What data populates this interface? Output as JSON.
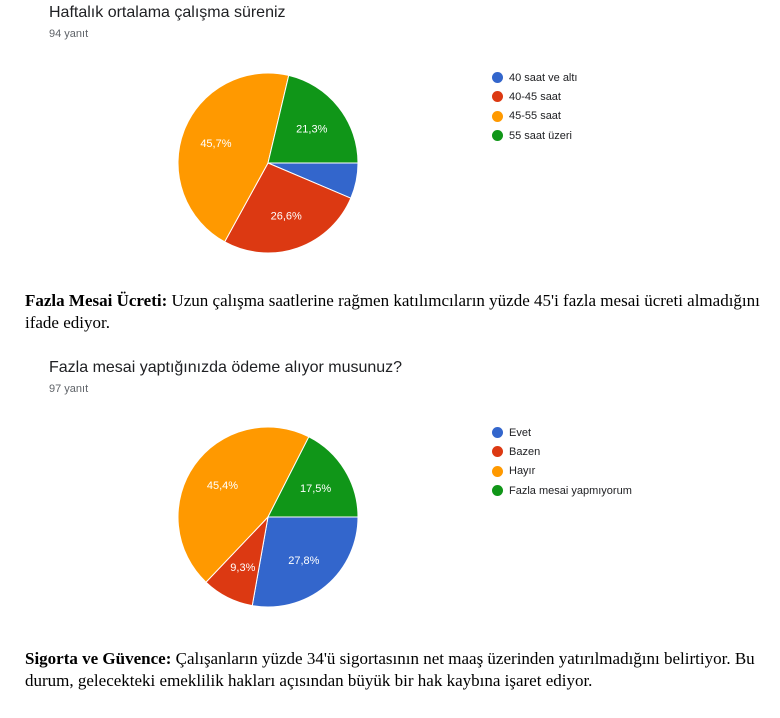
{
  "chart_data": [
    {
      "type": "pie",
      "title": "Haftalık ortalama çalışma süreniz",
      "response_count": "94 yanıt",
      "categories": [
        "40 saat ve altı",
        "40-45 saat",
        "45-55 saat",
        "55 saat üzeri"
      ],
      "values": [
        6.4,
        26.6,
        45.7,
        21.3
      ],
      "slice_labels": [
        "",
        "26,6%",
        "45,7%",
        "21,3%"
      ],
      "colors": [
        "#3366cc",
        "#dc3912",
        "#ff9900",
        "#109618"
      ],
      "legend_position": "right"
    },
    {
      "type": "pie",
      "title": "Fazla mesai yaptığınızda ödeme alıyor musunuz?",
      "response_count": "97 yanıt",
      "categories": [
        "Evet",
        "Bazen",
        "Hayır",
        "Fazla mesai yapmıyorum"
      ],
      "values": [
        27.8,
        9.3,
        45.4,
        17.5
      ],
      "slice_labels": [
        "27,8%",
        "9,3%",
        "45,4%",
        "17,5%"
      ],
      "colors": [
        "#3366cc",
        "#dc3912",
        "#ff9900",
        "#109618"
      ],
      "legend_position": "right"
    }
  ],
  "paragraphs": [
    {
      "bold": "Fazla Mesai Ücreti:",
      "text": " Uzun çalışma saatlerine rağmen katılımcıların yüzde 45'i fazla mesai ücreti almadığını ifade ediyor."
    },
    {
      "bold": "Sigorta ve Güvence:",
      "text": " Çalışanların yüzde 34'ü sigortasının net maaş üzerinden yatırılmadığını belirtiyor. Bu durum, gelecekteki emeklilik hakları açısından büyük bir hak kaybına işaret ediyor."
    }
  ]
}
